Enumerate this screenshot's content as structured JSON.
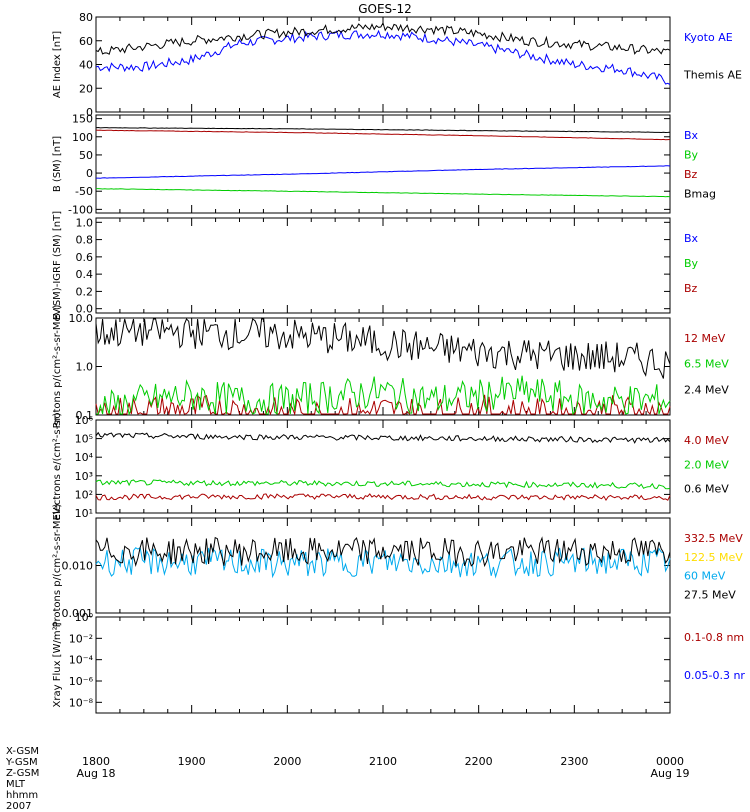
{
  "title": "GOES-12",
  "colors": {
    "black": "#000000",
    "blue": "#0000ff",
    "green": "#00cc00",
    "red": "#aa0000",
    "cyan": "#00aaee",
    "yellow": "#ffdd00"
  },
  "x_axis": {
    "ticks": [
      "1800",
      "1900",
      "2000",
      "2100",
      "2200",
      "2300",
      "0000"
    ],
    "date_left": "Aug 18",
    "date_right": "Aug 19",
    "x_range_hours": [
      18,
      24
    ]
  },
  "footer_labels": [
    "X-GSM",
    "Y-GSM",
    "Z-GSM",
    "MLT",
    "hhmm",
    "2007"
  ],
  "chart_data": [
    {
      "type": "line",
      "ylabel": "AE Index [nT]",
      "ylim": [
        0,
        80
      ],
      "log": false,
      "yticks": [
        "80",
        "60",
        "40",
        "20",
        "0"
      ],
      "yvals": [
        80,
        60,
        40,
        20,
        0
      ],
      "series": [
        {
          "name": "Kyoto AE",
          "color": "#0000ff",
          "x": [
            18,
            18.5,
            19,
            19.5,
            20,
            20.5,
            21,
            21.5,
            22,
            22.5,
            23,
            23.5,
            24
          ],
          "values": [
            38,
            38,
            44,
            58,
            62,
            65,
            66,
            62,
            56,
            48,
            40,
            36,
            26
          ]
        },
        {
          "name": "Themis AE",
          "color": "#000000",
          "x": [
            18,
            18.5,
            19,
            19.5,
            20,
            20.5,
            21,
            21.5,
            22,
            22.5,
            23,
            23.5,
            24
          ],
          "values": [
            50,
            55,
            60,
            64,
            67,
            70,
            72,
            70,
            66,
            60,
            57,
            54,
            50
          ]
        }
      ]
    },
    {
      "type": "line",
      "ylabel": "B (SM) [nT]",
      "ylim": [
        -110,
        160
      ],
      "log": false,
      "yticks": [
        "150",
        "100",
        "50",
        "0",
        "-50",
        "-100"
      ],
      "yvals": [
        150,
        100,
        50,
        0,
        -50,
        -100
      ],
      "series": [
        {
          "name": "Bx",
          "color": "#0000ff",
          "x": [
            18,
            20,
            22,
            24
          ],
          "values": [
            -14,
            -3,
            10,
            20
          ]
        },
        {
          "name": "By",
          "color": "#00cc00",
          "x": [
            18,
            20,
            22,
            24
          ],
          "values": [
            -43,
            -50,
            -58,
            -65
          ]
        },
        {
          "name": "Bz",
          "color": "#aa0000",
          "x": [
            18,
            20,
            22,
            24
          ],
          "values": [
            118,
            112,
            103,
            92
          ]
        },
        {
          "name": "Bmag",
          "color": "#000000",
          "x": [
            18,
            20,
            22,
            24
          ],
          "values": [
            125,
            122,
            117,
            112
          ]
        }
      ]
    },
    {
      "type": "line",
      "ylabel": "B (SM)-IGRF (SM) [nT]",
      "ylim": [
        -0.05,
        1.05
      ],
      "log": false,
      "yticks": [
        "1.0",
        "0.8",
        "0.6",
        "0.4",
        "0.2",
        "0.0"
      ],
      "yvals": [
        1.0,
        0.8,
        0.6,
        0.4,
        0.2,
        0.0
      ],
      "series": [
        {
          "name": "Bx",
          "color": "#0000ff",
          "x": [],
          "values": []
        },
        {
          "name": "By",
          "color": "#00cc00",
          "x": [],
          "values": []
        },
        {
          "name": "Bz",
          "color": "#aa0000",
          "x": [],
          "values": []
        }
      ]
    },
    {
      "type": "line",
      "ylabel": "Protons p/(cm²-s-sr-MeV)",
      "ylim": [
        0.1,
        10
      ],
      "log": true,
      "yticks": [
        "10.0",
        "1.0",
        "0.1"
      ],
      "yvals": [
        10,
        1,
        0.1
      ],
      "series": [
        {
          "name": "12 MeV",
          "color": "#aa0000",
          "x": [
            18,
            18.5,
            19,
            19.5,
            20,
            20.5,
            21,
            21.5,
            22,
            22.5,
            23,
            23.5,
            24
          ],
          "values": [
            0.1,
            0.12,
            0.12,
            0.12,
            0.1,
            0.1,
            0.12,
            0.1,
            0.12,
            0.1,
            0.1,
            0.12,
            0.1
          ]
        },
        {
          "name": "6.5 MeV",
          "color": "#00cc00",
          "x": [
            18,
            18.5,
            19,
            19.5,
            20,
            20.5,
            21,
            21.5,
            22,
            22.5,
            23,
            23.5,
            24
          ],
          "values": [
            0.12,
            0.2,
            0.25,
            0.2,
            0.2,
            0.25,
            0.3,
            0.2,
            0.25,
            0.3,
            0.2,
            0.2,
            0.2
          ]
        },
        {
          "name": "2.4 MeV",
          "color": "#000000",
          "x": [
            18,
            18.5,
            19,
            19.5,
            20,
            20.5,
            21,
            21.5,
            22,
            22.5,
            23,
            23.5,
            24
          ],
          "values": [
            5,
            5.5,
            5.2,
            4.8,
            4.5,
            3.8,
            3.0,
            2.4,
            2.0,
            1.8,
            1.6,
            1.5,
            1.2
          ]
        }
      ]
    },
    {
      "type": "line",
      "ylabel": "Electrons e/(cm²-s-sr)",
      "ylim": [
        10,
        1000000
      ],
      "log": true,
      "yticks": [
        "10⁶",
        "10⁵",
        "10⁴",
        "10³",
        "10²",
        "10¹"
      ],
      "yvals": [
        1000000,
        100000,
        10000,
        1000,
        100,
        10
      ],
      "series": [
        {
          "name": "4.0 MeV",
          "color": "#aa0000",
          "x": [
            18,
            19,
            20,
            21,
            22,
            23,
            24
          ],
          "values": [
            70,
            75,
            80,
            75,
            70,
            70,
            65
          ]
        },
        {
          "name": "2.0 MeV",
          "color": "#00cc00",
          "x": [
            18,
            19,
            20,
            21,
            22,
            23,
            24
          ],
          "values": [
            430,
            420,
            400,
            380,
            350,
            320,
            280
          ]
        },
        {
          "name": "0.6 MeV",
          "color": "#000000",
          "x": [
            18,
            19,
            20,
            21,
            22,
            23,
            24
          ],
          "values": [
            150000,
            130000,
            120000,
            110000,
            100000,
            90000,
            80000
          ]
        }
      ]
    },
    {
      "type": "line",
      "ylabel": "Protons p/(cm²-s-sr-MeV)",
      "ylim": [
        0.001,
        0.1
      ],
      "log": true,
      "yticks": [
        "0.010",
        "0.001"
      ],
      "yvals": [
        0.01,
        0.001
      ],
      "series": [
        {
          "name": "332.5 MeV",
          "color": "#aa0000",
          "x": [],
          "values": []
        },
        {
          "name": "122.5 MeV",
          "color": "#ffdd00",
          "x": [],
          "values": []
        },
        {
          "name": "60 MeV",
          "color": "#00aaee",
          "x": [
            18,
            19,
            20,
            21,
            22,
            23,
            24
          ],
          "values": [
            0.012,
            0.012,
            0.011,
            0.012,
            0.011,
            0.012,
            0.012
          ]
        },
        {
          "name": "27.5 MeV",
          "color": "#000000",
          "x": [
            18,
            19,
            20,
            21,
            22,
            23,
            24
          ],
          "values": [
            0.02,
            0.02,
            0.019,
            0.02,
            0.019,
            0.02,
            0.02
          ]
        }
      ]
    },
    {
      "type": "line",
      "ylabel": "Xray Flux [W/m²]",
      "ylim": [
        1e-09,
        1
      ],
      "log": true,
      "yticks": [
        "10⁰",
        "10⁻²",
        "10⁻⁴",
        "10⁻⁶",
        "10⁻⁸"
      ],
      "yvals": [
        1,
        0.01,
        0.0001,
        1e-06,
        1e-08
      ],
      "series": [
        {
          "name": "0.1-0.8 nm",
          "color": "#aa0000",
          "x": [],
          "values": []
        },
        {
          "name": "0.05-0.3 nr",
          "color": "#0000ff",
          "x": [],
          "values": []
        }
      ]
    }
  ]
}
